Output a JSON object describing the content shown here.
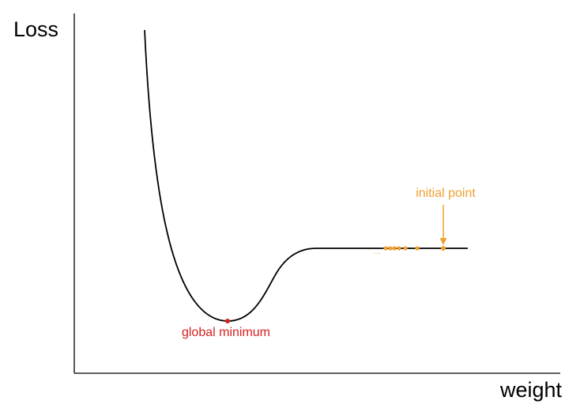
{
  "y_axis_label": "Loss",
  "x_axis_label": "weight",
  "annotations": {
    "global_minimum": "global minimum",
    "initial_point": "initial point",
    "ellipsis": "..."
  },
  "colors": {
    "curve": "#000000",
    "axes": "#000000",
    "global_minimum": "#d62020",
    "descent_path": "#f0a030"
  },
  "descent_steps_shown": 7
}
